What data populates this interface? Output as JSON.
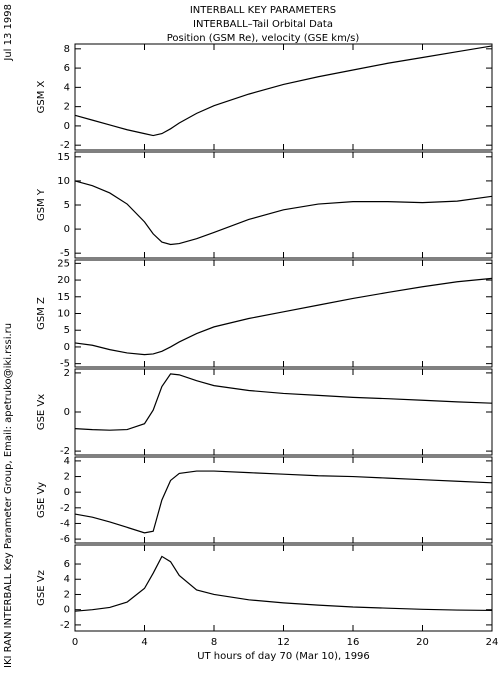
{
  "header": {
    "title_lines": [
      "INTERBALL KEY PARAMETERS",
      "INTERBALL–Tail Orbital Data",
      "Position (GSM Re), velocity (GSE km/s)"
    ],
    "date": "Jul 13 1998",
    "credit": "IKI RAN INTERBALL Key Parameter Group, Email: apetruko@iki.rssi.ru"
  },
  "chart_data": [
    {
      "type": "line",
      "ylabel": "GSM X",
      "xlim": [
        0,
        24
      ],
      "xticks": [
        0,
        4,
        8,
        12,
        16,
        20,
        24
      ],
      "x": [
        0,
        1,
        2,
        3,
        4,
        4.5,
        5,
        5.5,
        6,
        7,
        8,
        10,
        12,
        14,
        16,
        18,
        20,
        22,
        24
      ],
      "values": [
        1.1,
        0.6,
        0.1,
        -0.4,
        -0.8,
        -1.0,
        -0.8,
        -0.3,
        0.3,
        1.3,
        2.1,
        3.3,
        4.3,
        5.1,
        5.8,
        6.5,
        7.1,
        7.7,
        8.3
      ],
      "ylim": [
        -2.5,
        8.5
      ],
      "yticks": [
        -2,
        0,
        2,
        4,
        6,
        8
      ]
    },
    {
      "type": "line",
      "ylabel": "GSM Y",
      "xlim": [
        0,
        24
      ],
      "xticks": [
        0,
        4,
        8,
        12,
        16,
        20,
        24
      ],
      "x": [
        0,
        1,
        2,
        3,
        4,
        4.5,
        5,
        5.5,
        6,
        7,
        8,
        10,
        12,
        14,
        16,
        18,
        20,
        22,
        24
      ],
      "values": [
        10,
        9,
        7.5,
        5.2,
        1.5,
        -1,
        -2.7,
        -3.2,
        -3,
        -2,
        -0.7,
        2,
        4,
        5.2,
        5.7,
        5.7,
        5.5,
        5.8,
        6.8
      ],
      "ylim": [
        -6,
        16
      ],
      "yticks": [
        -5,
        0,
        5,
        10,
        15
      ]
    },
    {
      "type": "line",
      "ylabel": "GSM Z",
      "xlim": [
        0,
        24
      ],
      "xticks": [
        0,
        4,
        8,
        12,
        16,
        20,
        24
      ],
      "x": [
        0,
        1,
        2,
        3,
        4,
        4.5,
        5,
        5.5,
        6,
        7,
        8,
        10,
        12,
        14,
        16,
        18,
        20,
        22,
        24
      ],
      "values": [
        1.2,
        0.5,
        -0.8,
        -1.8,
        -2.3,
        -2.1,
        -1.3,
        0,
        1.5,
        4,
        6,
        8.5,
        10.5,
        12.5,
        14.5,
        16.3,
        18,
        19.5,
        20.5
      ],
      "ylim": [
        -6,
        26
      ],
      "yticks": [
        -5,
        0,
        5,
        10,
        15,
        20,
        25
      ]
    },
    {
      "type": "line",
      "ylabel": "GSE Vx",
      "xlim": [
        0,
        24
      ],
      "xticks": [
        0,
        4,
        8,
        12,
        16,
        20,
        24
      ],
      "x": [
        0,
        1,
        2,
        3,
        4,
        4.5,
        5,
        5.5,
        6,
        7,
        8,
        10,
        12,
        14,
        16,
        18,
        20,
        22,
        24
      ],
      "values": [
        -0.85,
        -0.9,
        -0.93,
        -0.9,
        -0.6,
        0.1,
        1.3,
        1.95,
        1.9,
        1.6,
        1.35,
        1.1,
        0.95,
        0.85,
        0.75,
        0.68,
        0.6,
        0.52,
        0.45
      ],
      "ylim": [
        -2.2,
        2.2
      ],
      "yticks": [
        -2,
        0,
        2
      ]
    },
    {
      "type": "line",
      "ylabel": "GSE Vy",
      "xlim": [
        0,
        24
      ],
      "xticks": [
        0,
        4,
        8,
        12,
        16,
        20,
        24
      ],
      "x": [
        0,
        1,
        2,
        3,
        4,
        4.5,
        5,
        5.5,
        6,
        7,
        8,
        10,
        12,
        14,
        16,
        18,
        20,
        22,
        24
      ],
      "values": [
        -2.8,
        -3.2,
        -3.8,
        -4.5,
        -5.2,
        -5,
        -1,
        1.5,
        2.4,
        2.7,
        2.7,
        2.5,
        2.3,
        2.1,
        2,
        1.8,
        1.6,
        1.4,
        1.2
      ],
      "ylim": [
        -6.5,
        4.5
      ],
      "yticks": [
        -6,
        -4,
        -2,
        0,
        2,
        4
      ]
    },
    {
      "type": "line",
      "ylabel": "GSE Vz",
      "xlim": [
        0,
        24
      ],
      "xticks": [
        0,
        4,
        8,
        12,
        16,
        20,
        24
      ],
      "x": [
        0,
        1,
        2,
        3,
        4,
        4.5,
        5,
        5.5,
        6,
        7,
        8,
        10,
        12,
        14,
        16,
        18,
        20,
        22,
        24
      ],
      "values": [
        -0.2,
        0,
        0.3,
        1,
        2.8,
        4.8,
        7,
        6.3,
        4.5,
        2.6,
        2,
        1.3,
        0.9,
        0.6,
        0.35,
        0.2,
        0.05,
        -0.05,
        -0.1
      ],
      "ylim": [
        -2.8,
        8.5
      ],
      "yticks": [
        -2,
        0,
        2,
        4,
        6
      ],
      "xlabel": "UT hours of day  70 (Mar 10), 1996"
    }
  ]
}
